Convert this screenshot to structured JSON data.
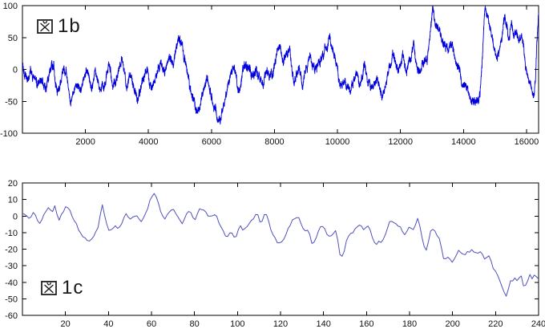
{
  "figure": {
    "background": "#ffffff",
    "axis_color": "#000000",
    "tick_label_color": "#111111",
    "tick_font_size": 11
  },
  "chart_data": [
    {
      "type": "line",
      "id": "fig1b",
      "label": "図1b",
      "label_kanji": "図",
      "label_suffix": "1b",
      "title": "",
      "xlabel": "",
      "ylabel": "",
      "xlim": [
        0,
        16384
      ],
      "ylim": [
        -100,
        100
      ],
      "x_ticks": [
        2000,
        4000,
        6000,
        8000,
        10000,
        12000,
        14000,
        16000
      ],
      "y_ticks": [
        -100,
        -50,
        0,
        50,
        100
      ],
      "grid": false,
      "legend": null,
      "line_color": "#0000dd",
      "line_width": 0.9,
      "description": "dense fractal random-walk, 16384 samples",
      "noise": {
        "seed": 1337,
        "jitter": 7,
        "ou_step": 6,
        "ou_persist": 0.93,
        "wander_step": 1.2,
        "wander_persist": 0.99,
        "points_rendered": 5200
      },
      "anchor_points": [
        [
          0,
          8
        ],
        [
          150,
          -12
        ],
        [
          350,
          -8
        ],
        [
          480,
          -27
        ],
        [
          610,
          -15
        ],
        [
          730,
          -34
        ],
        [
          860,
          -11
        ],
        [
          990,
          6
        ],
        [
          1120,
          -27
        ],
        [
          1250,
          -11
        ],
        [
          1380,
          4
        ],
        [
          1530,
          -38
        ],
        [
          1700,
          -19
        ],
        [
          1820,
          -35
        ],
        [
          1950,
          -5
        ],
        [
          2080,
          8
        ],
        [
          2200,
          -22
        ],
        [
          2320,
          -5
        ],
        [
          2450,
          -31
        ],
        [
          2620,
          -11
        ],
        [
          2740,
          11
        ],
        [
          2870,
          -22
        ],
        [
          3040,
          -5
        ],
        [
          3170,
          14
        ],
        [
          3290,
          -27
        ],
        [
          3460,
          -11
        ],
        [
          3660,
          -44
        ],
        [
          3830,
          -19
        ],
        [
          3960,
          0
        ],
        [
          4090,
          -27
        ],
        [
          4260,
          -5
        ],
        [
          4380,
          13
        ],
        [
          4510,
          -2
        ],
        [
          4680,
          27
        ],
        [
          4800,
          14
        ],
        [
          5000,
          50
        ],
        [
          5200,
          5
        ],
        [
          5400,
          -42
        ],
        [
          5600,
          -68
        ],
        [
          5750,
          -35
        ],
        [
          5900,
          -15
        ],
        [
          6050,
          -48
        ],
        [
          6280,
          -78
        ],
        [
          6490,
          -27
        ],
        [
          6720,
          8
        ],
        [
          6850,
          -30
        ],
        [
          7100,
          10
        ],
        [
          7270,
          -11
        ],
        [
          7440,
          5
        ],
        [
          7600,
          -27
        ],
        [
          7780,
          0
        ],
        [
          7950,
          -4
        ],
        [
          8140,
          31
        ],
        [
          8270,
          12
        ],
        [
          8480,
          33
        ],
        [
          8620,
          -19
        ],
        [
          8780,
          5
        ],
        [
          8900,
          -27
        ],
        [
          9110,
          27
        ],
        [
          9280,
          0
        ],
        [
          9530,
          17
        ],
        [
          9720,
          47
        ],
        [
          9930,
          12
        ],
        [
          10100,
          -23
        ],
        [
          10250,
          -15
        ],
        [
          10400,
          -34
        ],
        [
          10610,
          -11
        ],
        [
          10740,
          -27
        ],
        [
          10860,
          0
        ],
        [
          11040,
          -36
        ],
        [
          11250,
          -17
        ],
        [
          11420,
          -48
        ],
        [
          11680,
          14
        ],
        [
          11760,
          27
        ],
        [
          11930,
          -2
        ],
        [
          12090,
          21
        ],
        [
          12180,
          -11
        ],
        [
          12430,
          33
        ],
        [
          12560,
          0
        ],
        [
          12700,
          14
        ],
        [
          12850,
          23
        ],
        [
          13020,
          88
        ],
        [
          13190,
          64
        ],
        [
          13310,
          44
        ],
        [
          13440,
          30
        ],
        [
          13600,
          43
        ],
        [
          13720,
          14
        ],
        [
          13850,
          -2
        ],
        [
          14010,
          -27
        ],
        [
          14120,
          -30
        ],
        [
          14300,
          -52
        ],
        [
          14380,
          -47
        ],
        [
          14470,
          -54
        ],
        [
          14550,
          -27
        ],
        [
          14630,
          47
        ],
        [
          14680,
          95
        ],
        [
          14810,
          72
        ],
        [
          14900,
          53
        ],
        [
          14980,
          33
        ],
        [
          15060,
          14
        ],
        [
          15140,
          19
        ],
        [
          15230,
          60
        ],
        [
          15310,
          79
        ],
        [
          15390,
          65
        ],
        [
          15430,
          42
        ],
        [
          15520,
          72
        ],
        [
          15600,
          60
        ],
        [
          15680,
          66
        ],
        [
          15770,
          42
        ],
        [
          15850,
          53
        ],
        [
          15930,
          27
        ],
        [
          16010,
          -2
        ],
        [
          16090,
          -19
        ],
        [
          16170,
          -34
        ],
        [
          16250,
          -35
        ],
        [
          16290,
          -5
        ],
        [
          16330,
          47
        ],
        [
          16384,
          80
        ]
      ]
    },
    {
      "type": "line",
      "id": "fig1c",
      "label": "図1c",
      "label_kanji": "図",
      "label_suffix": "1c",
      "title": "",
      "xlabel": "",
      "ylabel": "",
      "xlim": [
        0,
        240
      ],
      "ylim": [
        -60,
        20
      ],
      "x_ticks": [
        20,
        40,
        60,
        80,
        100,
        120,
        140,
        160,
        180,
        200,
        220,
        240
      ],
      "y_ticks": [
        -60,
        -50,
        -40,
        -30,
        -20,
        -10,
        0,
        10,
        20
      ],
      "grid": false,
      "legend": null,
      "line_color": "#5050c0",
      "line_width": 1,
      "description": "coarse-grained walk, ~240 samples",
      "noise": {
        "seed": 42,
        "jitter": 1.6,
        "ou_step": 0,
        "ou_persist": 0,
        "wander_step": 0,
        "wander_persist": 0,
        "points_rendered": 240
      },
      "anchor_points": [
        [
          1,
          1
        ],
        [
          3,
          -2
        ],
        [
          5,
          2
        ],
        [
          8,
          -4
        ],
        [
          10,
          1
        ],
        [
          12,
          5
        ],
        [
          14,
          2
        ],
        [
          15,
          7
        ],
        [
          17,
          -3
        ],
        [
          20,
          6
        ],
        [
          22,
          3
        ],
        [
          24,
          -2
        ],
        [
          26,
          -8
        ],
        [
          28,
          -13
        ],
        [
          31,
          -15
        ],
        [
          33,
          -12
        ],
        [
          35,
          -8
        ],
        [
          37,
          7
        ],
        [
          40,
          -9
        ],
        [
          43,
          -6
        ],
        [
          45,
          -8
        ],
        [
          48,
          2
        ],
        [
          50,
          -2
        ],
        [
          53,
          1
        ],
        [
          55,
          -3
        ],
        [
          57,
          0
        ],
        [
          59,
          8
        ],
        [
          61,
          15
        ],
        [
          63,
          8
        ],
        [
          66,
          -3
        ],
        [
          68,
          2
        ],
        [
          70,
          5
        ],
        [
          72,
          0
        ],
        [
          74,
          -5
        ],
        [
          76,
          1
        ],
        [
          78,
          3
        ],
        [
          80,
          -3
        ],
        [
          82,
          4
        ],
        [
          84,
          5
        ],
        [
          86,
          1
        ],
        [
          88,
          -1
        ],
        [
          90,
          1
        ],
        [
          93,
          -9
        ],
        [
          95,
          -13
        ],
        [
          97,
          -10
        ],
        [
          99,
          -14
        ],
        [
          101,
          -6
        ],
        [
          103,
          -9
        ],
        [
          105,
          -5
        ],
        [
          107,
          -2
        ],
        [
          109,
          2
        ],
        [
          111,
          -5
        ],
        [
          113,
          3
        ],
        [
          116,
          -10
        ],
        [
          119,
          -17
        ],
        [
          121,
          -16
        ],
        [
          124,
          -6
        ],
        [
          127,
          0
        ],
        [
          129,
          -2
        ],
        [
          131,
          -9
        ],
        [
          133,
          -9
        ],
        [
          135,
          -18
        ],
        [
          138,
          -8
        ],
        [
          140,
          -5
        ],
        [
          142,
          -13
        ],
        [
          144,
          -12
        ],
        [
          146,
          -9
        ],
        [
          148,
          -27
        ],
        [
          150,
          -20
        ],
        [
          151,
          -12
        ],
        [
          153,
          -10
        ],
        [
          155,
          -8
        ],
        [
          157,
          -5
        ],
        [
          159,
          -8
        ],
        [
          161,
          -6
        ],
        [
          164,
          -17
        ],
        [
          167,
          -15
        ],
        [
          168,
          -14
        ],
        [
          171,
          -3
        ],
        [
          173,
          -5
        ],
        [
          175,
          -6
        ],
        [
          178,
          -11
        ],
        [
          180,
          -7
        ],
        [
          182,
          -9
        ],
        [
          184,
          -1
        ],
        [
          187,
          -20
        ],
        [
          188,
          -21
        ],
        [
          190,
          -7
        ],
        [
          192,
          -10
        ],
        [
          194,
          -13
        ],
        [
          196,
          -26
        ],
        [
          198,
          -25
        ],
        [
          200,
          -28
        ],
        [
          203,
          -21
        ],
        [
          205,
          -24
        ],
        [
          207,
          -22
        ],
        [
          209,
          -21
        ],
        [
          211,
          -23
        ],
        [
          213,
          -21
        ],
        [
          215,
          -26
        ],
        [
          217,
          -24
        ],
        [
          219,
          -32
        ],
        [
          221,
          -35
        ],
        [
          223,
          -43
        ],
        [
          225,
          -49
        ],
        [
          227,
          -39
        ],
        [
          229,
          -38
        ],
        [
          230,
          -39
        ],
        [
          232,
          -36
        ],
        [
          233,
          -43
        ],
        [
          235,
          -39
        ],
        [
          236,
          -36
        ],
        [
          237,
          -38
        ],
        [
          238,
          -35
        ],
        [
          240,
          -38
        ]
      ]
    }
  ]
}
